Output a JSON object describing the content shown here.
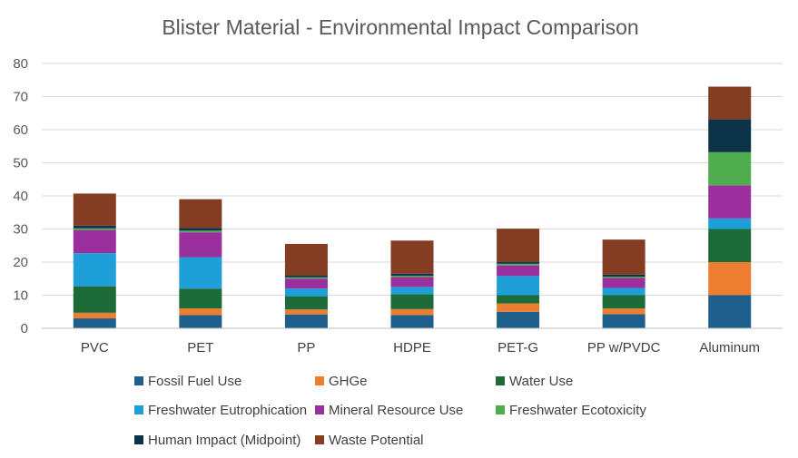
{
  "chart_data": {
    "type": "bar",
    "stacked": true,
    "title": "Blister Material - Environmental Impact Comparison",
    "xlabel": "",
    "ylabel": "",
    "ylim": [
      0,
      80
    ],
    "yticks": [
      0,
      10,
      20,
      30,
      40,
      50,
      60,
      70,
      80
    ],
    "grid": true,
    "legend_position": "bottom",
    "categories": [
      "PVC",
      "PET",
      "PP",
      "HDPE",
      "PET-G",
      "PP w/PVDC",
      "Aluminum"
    ],
    "series": [
      {
        "name": "Fossil Fuel Use",
        "color": "#1f5f8b",
        "values": [
          3,
          4,
          4.2,
          4,
          5,
          4.3,
          10
        ]
      },
      {
        "name": "GHGe",
        "color": "#ed7d31",
        "values": [
          1.7,
          2,
          1.5,
          1.8,
          2.5,
          1.7,
          10
        ]
      },
      {
        "name": "Water Use",
        "color": "#1e6b3a",
        "values": [
          8,
          6,
          4,
          4.5,
          2.5,
          4,
          10
        ]
      },
      {
        "name": "Freshwater Eutrophication",
        "color": "#1f9fd8",
        "values": [
          10,
          9.5,
          2.3,
          2.2,
          5.8,
          2.2,
          3.2
        ]
      },
      {
        "name": "Mineral Resource Use",
        "color": "#9b2f9e",
        "values": [
          7,
          7.5,
          3,
          3,
          3.2,
          3,
          10
        ]
      },
      {
        "name": "Freshwater Ecotoxicity",
        "color": "#4fad4f",
        "values": [
          0.5,
          0.5,
          0.4,
          0.4,
          0.5,
          0.4,
          10
        ]
      },
      {
        "name": "Human Impact (Midpoint)",
        "color": "#0d3349",
        "values": [
          0.8,
          0.8,
          0.6,
          0.6,
          0.6,
          0.6,
          10
        ]
      },
      {
        "name": "Waste Potential",
        "color": "#843c22",
        "values": [
          9.7,
          8.7,
          9.5,
          10,
          10,
          10.6,
          9.8
        ]
      }
    ]
  }
}
